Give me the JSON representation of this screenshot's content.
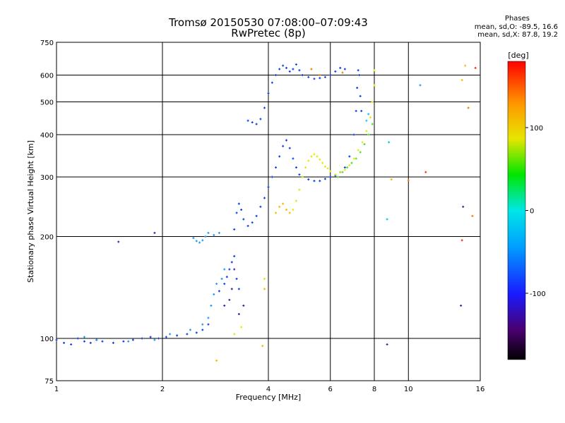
{
  "title_line1": "Tromsø 20150530 07:08:00–07:09:43",
  "title_line2": "RwPretec (8p)",
  "phases": {
    "title": "Phases",
    "o_stats": "mean, sd,O: -89.5, 16.6",
    "x_stats": "mean, sd,X:  87.8, 19.2"
  },
  "colorbar": {
    "label": "[deg]",
    "ticks": [
      "100",
      "0",
      "-100"
    ],
    "tick_values": [
      100,
      0,
      -100
    ],
    "range": [
      -180,
      180
    ]
  },
  "chart_data": {
    "type": "scatter",
    "xlabel": "Frequency [MHz]",
    "ylabel": "Stationary phase Virtual Height [km]",
    "xscale": "log",
    "yscale": "log",
    "xlim": [
      1,
      16
    ],
    "ylim": [
      75,
      750
    ],
    "x_ticks": [
      1,
      2,
      4,
      6,
      8,
      10,
      16
    ],
    "y_ticks": [
      75,
      100,
      200,
      300,
      400,
      500,
      600,
      750
    ],
    "grid": true,
    "series": [
      {
        "color": "#0a3ce8",
        "points": [
          [
            1.0,
            99
          ],
          [
            1.05,
            97
          ],
          [
            1.1,
            96
          ],
          [
            1.15,
            100
          ],
          [
            1.2,
            98
          ],
          [
            1.25,
            97
          ],
          [
            1.3,
            99
          ],
          [
            1.35,
            98
          ],
          [
            1.45,
            97
          ],
          [
            1.55,
            98
          ],
          [
            1.65,
            99
          ],
          [
            1.75,
            100
          ],
          [
            1.85,
            101
          ],
          [
            1.95,
            100
          ],
          [
            2.05,
            101
          ],
          [
            2.2,
            102
          ],
          [
            2.35,
            103
          ],
          [
            2.5,
            104
          ],
          [
            2.6,
            106
          ],
          [
            2.7,
            110
          ],
          [
            2.9,
            138
          ],
          [
            3.0,
            145
          ],
          [
            3.05,
            152
          ],
          [
            3.1,
            160
          ],
          [
            3.15,
            168
          ],
          [
            3.2,
            175
          ],
          [
            3.25,
            150
          ],
          [
            3.3,
            140
          ],
          [
            3.2,
            210
          ],
          [
            3.25,
            235
          ],
          [
            3.3,
            250
          ],
          [
            3.35,
            240
          ],
          [
            3.4,
            225
          ],
          [
            3.5,
            215
          ],
          [
            3.6,
            220
          ],
          [
            3.7,
            230
          ],
          [
            3.8,
            245
          ],
          [
            3.9,
            260
          ],
          [
            4.0,
            280
          ],
          [
            4.1,
            300
          ],
          [
            4.2,
            320
          ],
          [
            4.3,
            345
          ],
          [
            4.4,
            370
          ],
          [
            4.5,
            385
          ],
          [
            4.6,
            365
          ],
          [
            4.7,
            340
          ],
          [
            4.8,
            320
          ],
          [
            4.9,
            305
          ],
          [
            5.0,
            300
          ],
          [
            5.2,
            295
          ],
          [
            5.4,
            292
          ],
          [
            5.6,
            292
          ],
          [
            5.8,
            296
          ],
          [
            6.0,
            300
          ],
          [
            6.2,
            303
          ],
          [
            3.5,
            440
          ],
          [
            3.6,
            435
          ],
          [
            3.7,
            430
          ],
          [
            3.8,
            445
          ],
          [
            3.9,
            480
          ],
          [
            4.0,
            530
          ],
          [
            4.1,
            570
          ],
          [
            4.2,
            600
          ],
          [
            4.3,
            625
          ],
          [
            4.4,
            640
          ],
          [
            4.5,
            630
          ],
          [
            4.6,
            615
          ],
          [
            4.7,
            625
          ],
          [
            4.8,
            645
          ],
          [
            4.9,
            620
          ],
          [
            5.0,
            600
          ],
          [
            5.2,
            592
          ],
          [
            5.4,
            585
          ],
          [
            5.6,
            588
          ],
          [
            5.8,
            592
          ],
          [
            6.0,
            600
          ],
          [
            6.2,
            615
          ],
          [
            6.4,
            630
          ],
          [
            6.6,
            625
          ],
          [
            6.4,
            310
          ],
          [
            6.6,
            320
          ],
          [
            6.8,
            345
          ],
          [
            7.0,
            400
          ],
          [
            7.1,
            470
          ],
          [
            7.15,
            550
          ],
          [
            7.2,
            620
          ],
          [
            7.25,
            600
          ],
          [
            7.3,
            520
          ],
          [
            7.35,
            470
          ]
        ]
      },
      {
        "color": "#1e96f0",
        "points": [
          [
            1.2,
            101
          ],
          [
            1.3,
            99
          ],
          [
            1.6,
            98
          ],
          [
            1.9,
            99
          ],
          [
            2.1,
            103
          ],
          [
            2.4,
            106
          ],
          [
            2.6,
            110
          ],
          [
            2.7,
            115
          ],
          [
            2.75,
            125
          ],
          [
            2.8,
            135
          ],
          [
            2.85,
            145
          ],
          [
            2.95,
            150
          ],
          [
            3.0,
            160
          ],
          [
            2.45,
            198
          ],
          [
            2.5,
            194
          ],
          [
            2.55,
            192
          ],
          [
            2.6,
            195
          ],
          [
            2.65,
            200
          ],
          [
            2.7,
            205
          ],
          [
            2.8,
            202
          ],
          [
            2.9,
            205
          ],
          [
            10.8,
            560
          ]
        ]
      },
      {
        "color": "#00c8e6",
        "points": [
          [
            7.6,
            440
          ],
          [
            7.7,
            460
          ],
          [
            8.7,
            225
          ],
          [
            8.8,
            380
          ]
        ]
      },
      {
        "color": "#44e02a",
        "points": [
          [
            6.3,
            300
          ],
          [
            6.5,
            310
          ],
          [
            6.7,
            320
          ],
          [
            6.9,
            330
          ],
          [
            7.1,
            340
          ],
          [
            7.3,
            355
          ],
          [
            7.5,
            375
          ],
          [
            7.7,
            400
          ],
          [
            7.9,
            430
          ]
        ]
      },
      {
        "color": "#e8e600",
        "points": [
          [
            4.7,
            240
          ],
          [
            4.8,
            255
          ],
          [
            4.9,
            275
          ],
          [
            5.0,
            300
          ],
          [
            5.1,
            320
          ],
          [
            5.2,
            335
          ],
          [
            5.3,
            345
          ],
          [
            5.4,
            350
          ],
          [
            5.5,
            345
          ],
          [
            5.6,
            338
          ],
          [
            5.7,
            330
          ],
          [
            5.8,
            322
          ],
          [
            5.9,
            318
          ],
          [
            6.0,
            312
          ],
          [
            6.2,
            305
          ],
          [
            6.4,
            310
          ],
          [
            6.6,
            315
          ],
          [
            6.8,
            325
          ],
          [
            7.0,
            340
          ],
          [
            7.2,
            360
          ],
          [
            7.4,
            380
          ],
          [
            7.6,
            410
          ],
          [
            7.8,
            450
          ],
          [
            7.9,
            500
          ],
          [
            8.0,
            560
          ],
          [
            8.0,
            620
          ],
          [
            3.2,
            103
          ],
          [
            3.35,
            108
          ],
          [
            3.9,
            150
          ]
        ]
      },
      {
        "color": "#ffb400",
        "points": [
          [
            4.2,
            235
          ],
          [
            4.3,
            245
          ],
          [
            4.4,
            250
          ],
          [
            4.5,
            240
          ],
          [
            4.6,
            235
          ],
          [
            3.9,
            140
          ],
          [
            3.85,
            95
          ],
          [
            2.85,
            86
          ],
          [
            8.95,
            295
          ],
          [
            14.2,
            580
          ],
          [
            14.5,
            640
          ]
        ]
      },
      {
        "color": "#f07800",
        "points": [
          [
            5.3,
            625
          ],
          [
            5.6,
            600
          ],
          [
            6.5,
            610
          ],
          [
            10.0,
            293
          ],
          [
            14.8,
            480
          ],
          [
            15.2,
            230
          ]
        ]
      },
      {
        "color": "#e83200",
        "points": [
          [
            11.2,
            310
          ],
          [
            14.2,
            195
          ],
          [
            15.5,
            630
          ]
        ]
      },
      {
        "color": "#3c1ea0",
        "points": [
          [
            3.0,
            125
          ],
          [
            3.1,
            130
          ],
          [
            3.15,
            140
          ],
          [
            3.2,
            160
          ],
          [
            3.3,
            118
          ],
          [
            3.4,
            125
          ],
          [
            1.5,
            193
          ],
          [
            1.9,
            205
          ],
          [
            8.7,
            96
          ],
          [
            14.1,
            125
          ],
          [
            14.3,
            245
          ]
        ]
      }
    ]
  }
}
